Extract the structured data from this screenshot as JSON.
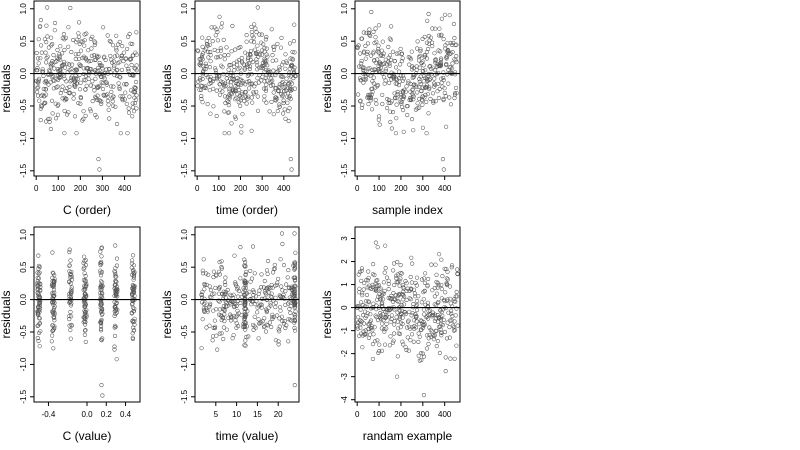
{
  "chart_data": [
    {
      "type": "scatter",
      "xlabel": "C (order)",
      "ylabel": "residuals",
      "xlim": [
        -10,
        470
      ],
      "ylim": [
        -1.58,
        1.12
      ],
      "xticks": [
        0,
        100,
        200,
        300,
        400
      ],
      "yticks": [
        -1.5,
        -1.0,
        -0.5,
        0.0,
        0.5,
        1.0
      ],
      "ytick_labels": [
        "-1.5",
        "-1.0",
        "-0.5",
        "0.0",
        "0.5",
        "1.0"
      ],
      "reference_line_y": 0,
      "n_points": 460,
      "points_note": "open circles; residuals spread roughly between -0.9 and 0.9 with outliers near -1.3 and -1.5 around x = 280"
    },
    {
      "type": "scatter",
      "xlabel": "time (order)",
      "ylabel": "residuals",
      "xlim": [
        -10,
        470
      ],
      "ylim": [
        -1.58,
        1.12
      ],
      "xticks": [
        0,
        100,
        200,
        300,
        400
      ],
      "yticks": [
        -1.5,
        -1.0,
        -0.5,
        0.0,
        0.5,
        1.0
      ],
      "ytick_labels": [
        "-1.5",
        "-1.0",
        "-0.5",
        "0.0",
        "0.5",
        "1.0"
      ],
      "reference_line_y": 0,
      "n_points": 460,
      "points_note": "open circles; outliers near -1.3 and -1.5 around x = 430"
    },
    {
      "type": "scatter",
      "xlabel": "sample index",
      "ylabel": "residuals",
      "xlim": [
        -10,
        470
      ],
      "ylim": [
        -1.58,
        1.12
      ],
      "xticks": [
        0,
        100,
        200,
        300,
        400
      ],
      "yticks": [
        -1.5,
        -1.0,
        -0.5,
        0.0,
        0.5,
        1.0
      ],
      "ytick_labels": [
        "-1.5",
        "-1.0",
        "-0.5",
        "0.0",
        "0.5",
        "1.0"
      ],
      "reference_line_y": 0,
      "n_points": 460,
      "points_note": "open circles; outliers near -1.3 and -1.5 around x = 390"
    },
    {
      "type": "scatter",
      "xlabel": "C (value)",
      "ylabel": "residuals",
      "xlim": [
        -0.55,
        0.55
      ],
      "ylim": [
        -1.58,
        1.12
      ],
      "xticks": [
        -0.4,
        0.0,
        0.2,
        0.4
      ],
      "xtick_labels": [
        "-0.4",
        "0.0",
        "0.2",
        "0.4"
      ],
      "yticks": [
        -1.5,
        -1.0,
        -0.5,
        0.0,
        0.5,
        1.0
      ],
      "ytick_labels": [
        "-1.5",
        "-1.0",
        "-0.5",
        "0.0",
        "0.5",
        "1.0"
      ],
      "reference_line_y": 0,
      "discrete_x_values": [
        -0.5,
        -0.35,
        -0.17,
        -0.02,
        0.15,
        0.3,
        0.48
      ],
      "points_note": "open circles stacked in vertical columns at discrete C values; outliers near -1.3 and -1.5 at x = 0.15"
    },
    {
      "type": "scatter",
      "xlabel": "time (value)",
      "ylabel": "residuals",
      "xlim": [
        0,
        25
      ],
      "ylim": [
        -1.58,
        1.12
      ],
      "xticks": [
        5,
        10,
        15,
        20
      ],
      "yticks": [
        -1.5,
        -1.0,
        -0.5,
        0.0,
        0.5,
        1.0
      ],
      "ytick_labels": [
        "-1.5",
        "-1.0",
        "-0.5",
        "0.0",
        "0.5",
        "1.0"
      ],
      "reference_line_y": 0,
      "points_note": "open circles; dense vertical columns at x = 12 and x = 24; outlier near -1.3 at x = 24"
    },
    {
      "type": "scatter",
      "xlabel": "randam example",
      "ylabel": "residuals",
      "xlim": [
        -10,
        470
      ],
      "ylim": [
        -4.1,
        3.5
      ],
      "xticks": [
        0,
        100,
        200,
        300,
        400
      ],
      "yticks": [
        -4,
        -3,
        -2,
        -1,
        0,
        1,
        2,
        3
      ],
      "ytick_labels": [
        "-4",
        "-3",
        "-2",
        "-1",
        "0",
        "1",
        "2",
        "3"
      ],
      "reference_line_y": 0,
      "n_points": 460,
      "points_note": "open circles; standard-normal-like random residuals between about -3 and 3, one point near -3.8"
    }
  ]
}
